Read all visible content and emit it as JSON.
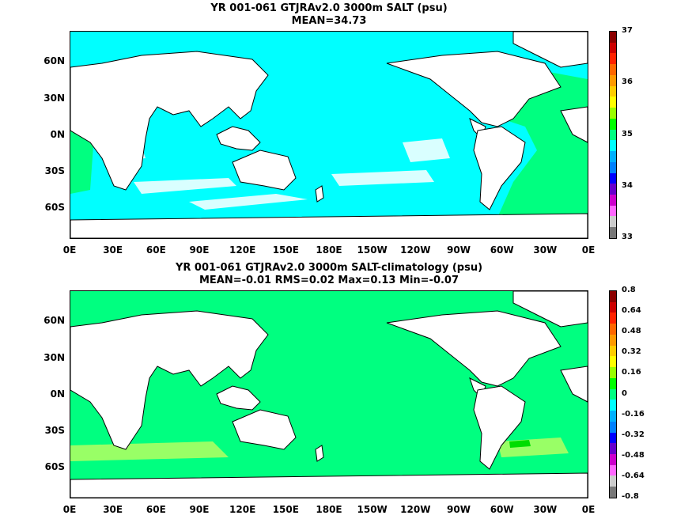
{
  "panels": [
    {
      "title1": "YR 001-061 GTJRAv2.0 3000m SALT (psu)",
      "title2": "MEAN=34.73",
      "ocean_color": "#00ffff",
      "atlantic_color": "#00ff80",
      "colorbar": {
        "labels": [
          "37",
          "36",
          "35",
          "34",
          "33"
        ],
        "colors": [
          "#8b0000",
          "#cc0000",
          "#ff2200",
          "#ff6600",
          "#ff9900",
          "#ffcc00",
          "#ffff00",
          "#99ff00",
          "#00ff00",
          "#00ff80",
          "#00ffff",
          "#00b0ff",
          "#0080ff",
          "#0000ff",
          "#6600cc",
          "#cc00cc",
          "#ff66ff",
          "#cccccc",
          "#777777"
        ]
      }
    },
    {
      "title1": "YR 001-061 GTJRAv2.0 3000m SALT-climatology (psu)",
      "title2": "MEAN=-0.01   RMS=0.02   Max=0.13   Min=-0.07",
      "ocean_color": "#00ff80",
      "atlantic_color": "#00ff80",
      "colorbar": {
        "labels": [
          "0.8",
          "0.64",
          "0.48",
          "0.32",
          "0.16",
          "0",
          "-0.16",
          "-0.32",
          "-0.48",
          "-0.64",
          "-0.8"
        ],
        "colors": [
          "#8b0000",
          "#cc0000",
          "#ff2200",
          "#ff6600",
          "#ff9900",
          "#ffcc00",
          "#ffff00",
          "#99ff00",
          "#00ff00",
          "#00ff80",
          "#00ffff",
          "#00b0ff",
          "#0080ff",
          "#0000ff",
          "#6600cc",
          "#cc00cc",
          "#ff66ff",
          "#cccccc",
          "#777777"
        ]
      }
    }
  ],
  "axes": {
    "lat_labels": [
      "60N",
      "30N",
      "0N",
      "30S",
      "60S"
    ],
    "lon_labels": [
      "0E",
      "30E",
      "60E",
      "90E",
      "120E",
      "150E",
      "180E",
      "150W",
      "120W",
      "90W",
      "60W",
      "30W",
      "0E"
    ]
  }
}
